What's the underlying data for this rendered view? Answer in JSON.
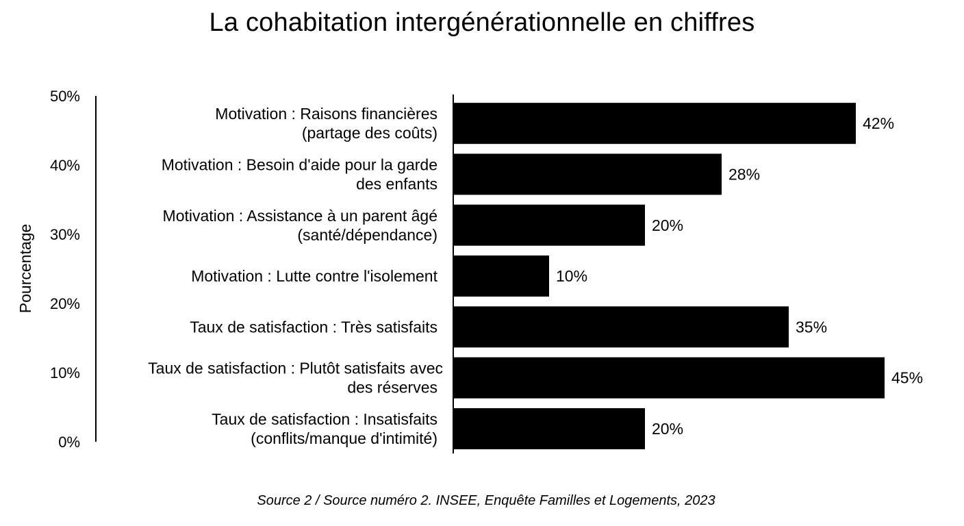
{
  "title": "La cohabitation intergénérationnelle en chiffres",
  "source": "Source 2 / Source numéro 2. INSEE, Enquête Familles et Logements, 2023",
  "chart_data": {
    "type": "bar",
    "orientation": "horizontal",
    "title": "La cohabitation intergénérationnelle en chiffres",
    "ylabel": "Pourcentage",
    "y_axis_ticks": [
      "0%",
      "10%",
      "20%",
      "30%",
      "40%",
      "50%"
    ],
    "bar_color": "#000000",
    "categories": [
      [
        "Motivation : Raisons financières",
        "(partage des coûts)"
      ],
      [
        "Motivation : Besoin d'aide pour la garde",
        "des enfants"
      ],
      [
        "Motivation : Assistance à un parent âgé",
        "(santé/dépendance)"
      ],
      [
        "Motivation : Lutte contre l'isolement"
      ],
      [
        "Taux de satisfaction : Très satisfaits"
      ],
      [
        "Taux de satisfaction : Plutôt satisfaits avec",
        "des réserves"
      ],
      [
        "Taux de satisfaction : Insatisfaits",
        "(conflits/manque d'intimité)"
      ]
    ],
    "values": [
      42,
      28,
      20,
      10,
      35,
      45,
      20
    ],
    "value_labels": [
      "42%",
      "28%",
      "20%",
      "10%",
      "35%",
      "45%",
      "20%"
    ],
    "xlim": [
      0,
      45
    ],
    "grid": false,
    "legend": "none"
  }
}
